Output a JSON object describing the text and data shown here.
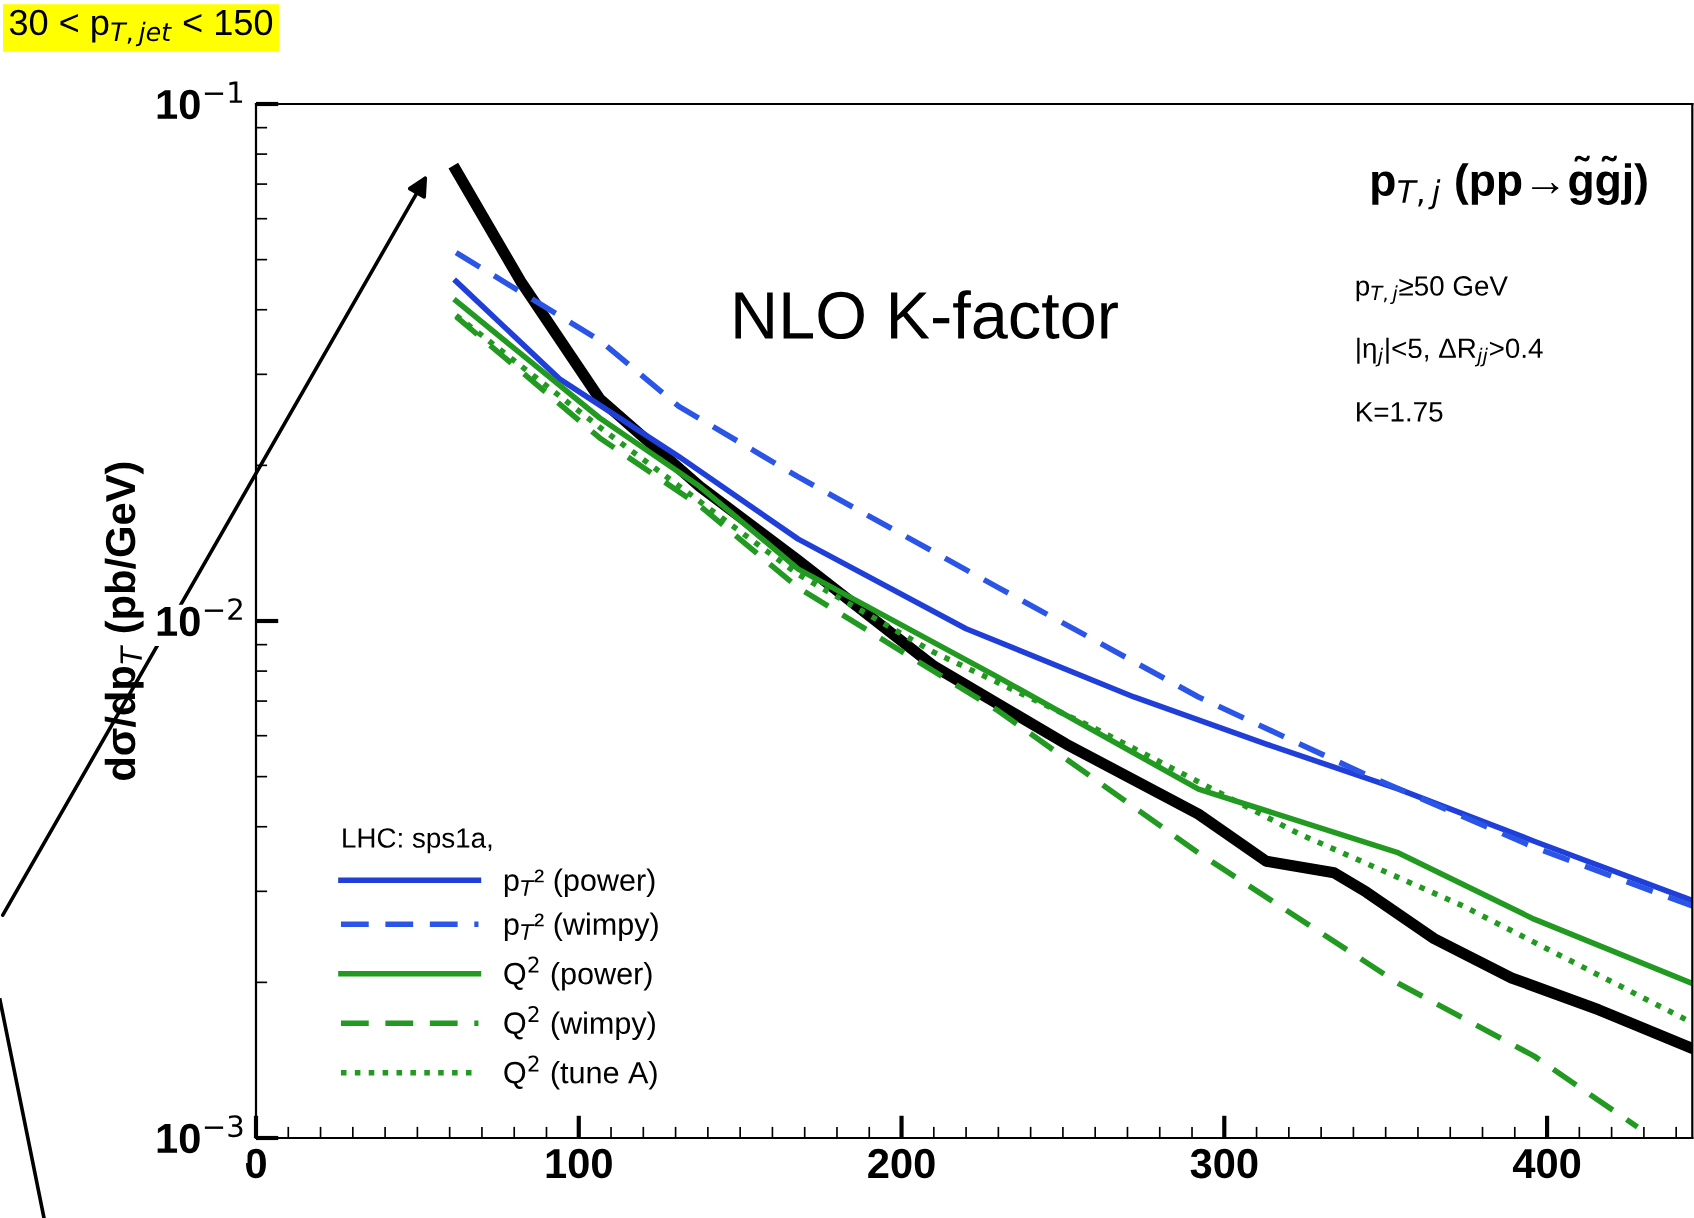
{
  "chart_data": {
    "type": "line",
    "title": "p$_{T,j}$ (pp→g̃g̃j)",
    "ylabel": "dσ/dp$_{T}$ (pb/GeV)",
    "legend_title": "LHC: sps1a,",
    "log": "y",
    "xlim": [
      0,
      445
    ],
    "xticks": [
      0,
      100,
      200,
      300,
      400
    ],
    "ylim": [
      0.001,
      0.1
    ],
    "yticks": [
      {
        "value": 0.1,
        "label": "10$^{−1}$"
      },
      {
        "value": 0.01,
        "label": "10$^{−2}$"
      },
      {
        "value": 0.001,
        "label": "10$^{−3}$"
      }
    ],
    "grid": false,
    "legend": "bottom left",
    "marker": "none",
    "annotations": [
      "30 < p$_{T,jet}$ < 150",
      "NLO K-factor",
      "p$_{T,j}$≥50 GeV",
      "|η$_{j}$|<5, ΔR$_{jj}$>0.4",
      "K=1.75"
    ],
    "series": [
      {
        "color": "#000000",
        "line_style": "solid",
        "x": [
          62,
          82,
          106.5,
          137.5,
          168,
          210,
          251,
          292,
          313,
          334,
          344,
          365,
          389,
          416,
          445
        ],
        "values": [
          0.0744,
          0.0454,
          0.0269,
          0.0182,
          0.0131,
          0.00818,
          0.00578,
          0.00423,
          0.00343,
          0.00326,
          0.00299,
          0.00243,
          0.00204,
          0.00177,
          0.00149
        ]
      },
      {
        "name": "p$_{T}$² (power)",
        "color": "#1f3fd8",
        "line_style": "solid",
        "x": [
          62,
          94,
          131,
          168,
          220,
          272,
          313,
          354,
          396,
          445
        ],
        "values": [
          0.0454,
          0.0294,
          0.0208,
          0.0144,
          0.00966,
          0.00713,
          0.00578,
          0.00473,
          0.00375,
          0.00288
        ]
      },
      {
        "name": "p$_{T}$² (wimpy)",
        "color": "#2a55e6",
        "line_style": "dashed",
        "x": [
          62,
          106.5,
          131,
          168,
          230,
          292,
          344,
          396,
          445
        ],
        "values": [
          0.0516,
          0.0349,
          0.026,
          0.019,
          0.0116,
          0.00713,
          0.00504,
          0.00365,
          0.00281
        ]
      },
      {
        "name": "Q$^{2}$ (power)",
        "color": "#229a22",
        "line_style": "solid",
        "x": [
          62,
          106.5,
          137.5,
          168,
          230,
          292,
          354,
          396,
          445
        ],
        "values": [
          0.0416,
          0.0247,
          0.0182,
          0.0126,
          0.00778,
          0.00473,
          0.00356,
          0.00265,
          0.00199
        ]
      },
      {
        "name": "Q$^{2}$ (wimpy)",
        "color": "#229a22",
        "line_style": "dashed",
        "x": [
          62,
          106.5,
          137.5,
          168,
          230,
          292,
          354,
          396,
          428
        ],
        "values": [
          0.0388,
          0.0226,
          0.0167,
          0.0116,
          0.0067,
          0.00356,
          0.00199,
          0.00144,
          0.00105
        ]
      },
      {
        "name": "Q$^{2}$ (tune A)",
        "color": "#229a22",
        "line_style": "dotted",
        "x": [
          62,
          106.5,
          168,
          210,
          261,
          323,
          374,
          445
        ],
        "values": [
          0.039,
          0.0237,
          0.0123,
          0.0087,
          0.00615,
          0.00388,
          0.00281,
          0.00167
        ]
      }
    ]
  }
}
